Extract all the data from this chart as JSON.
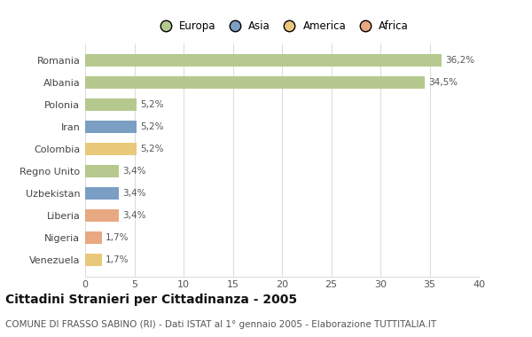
{
  "countries": [
    "Romania",
    "Albania",
    "Polonia",
    "Iran",
    "Colombia",
    "Regno Unito",
    "Uzbekistan",
    "Liberia",
    "Nigeria",
    "Venezuela"
  ],
  "values": [
    36.2,
    34.5,
    5.2,
    5.2,
    5.2,
    3.4,
    3.4,
    3.4,
    1.7,
    1.7
  ],
  "labels": [
    "36,2%",
    "34,5%",
    "5,2%",
    "5,2%",
    "5,2%",
    "3,4%",
    "3,4%",
    "3,4%",
    "1,7%",
    "1,7%"
  ],
  "colors": [
    "#b5c98e",
    "#b5c98e",
    "#b5c98e",
    "#7b9ec4",
    "#e8c97a",
    "#b5c98e",
    "#7b9ec4",
    "#e8a882",
    "#e8a882",
    "#e8c97a"
  ],
  "legend_labels": [
    "Europa",
    "Asia",
    "America",
    "Africa"
  ],
  "legend_colors": [
    "#b5c98e",
    "#7b9ec4",
    "#e8c97a",
    "#e8a882"
  ],
  "title": "Cittadini Stranieri per Cittadinanza - 2005",
  "subtitle": "COMUNE DI FRASSO SABINO (RI) - Dati ISTAT al 1° gennaio 2005 - Elaborazione TUTTITALIA.IT",
  "xlim": [
    0,
    40
  ],
  "xticks": [
    0,
    5,
    10,
    15,
    20,
    25,
    30,
    35,
    40
  ],
  "background_color": "#ffffff",
  "grid_color": "#dddddd",
  "bar_height": 0.55,
  "title_fontsize": 10,
  "subtitle_fontsize": 7.5,
  "label_fontsize": 7.5,
  "tick_fontsize": 8,
  "legend_fontsize": 8.5
}
